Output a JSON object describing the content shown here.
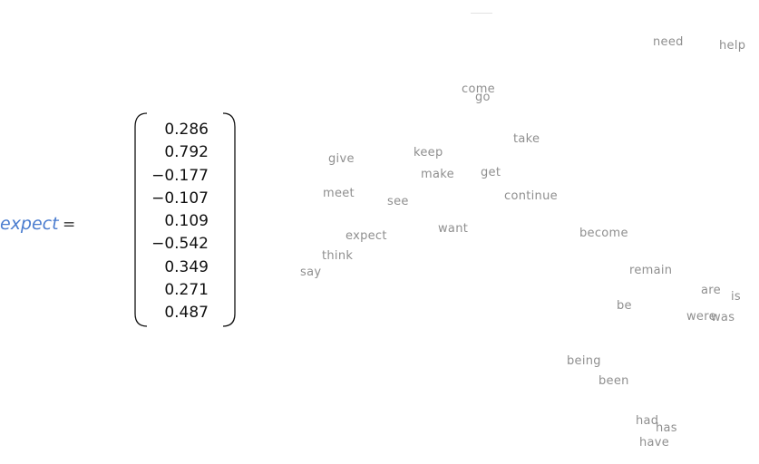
{
  "equation": {
    "word": "expect",
    "equals": "=",
    "vector": [
      "0.286",
      "0.792",
      "−0.177",
      "−0.107",
      "0.109",
      "−0.542",
      "0.349",
      "0.271",
      "0.487"
    ]
  },
  "words": [
    {
      "text": "need"
    },
    {
      "text": "help"
    },
    {
      "text": "come"
    },
    {
      "text": "go"
    },
    {
      "text": "take"
    },
    {
      "text": "give"
    },
    {
      "text": "keep"
    },
    {
      "text": "make"
    },
    {
      "text": "get"
    },
    {
      "text": "meet"
    },
    {
      "text": "see"
    },
    {
      "text": "continue"
    },
    {
      "text": "want"
    },
    {
      "text": "become"
    },
    {
      "text": "expect"
    },
    {
      "text": "think"
    },
    {
      "text": "say"
    },
    {
      "text": "remain"
    },
    {
      "text": "are"
    },
    {
      "text": "is"
    },
    {
      "text": "be"
    },
    {
      "text": "were"
    },
    {
      "text": "was"
    },
    {
      "text": "being"
    },
    {
      "text": "been"
    },
    {
      "text": "had"
    },
    {
      "text": "has"
    },
    {
      "text": "have"
    }
  ]
}
